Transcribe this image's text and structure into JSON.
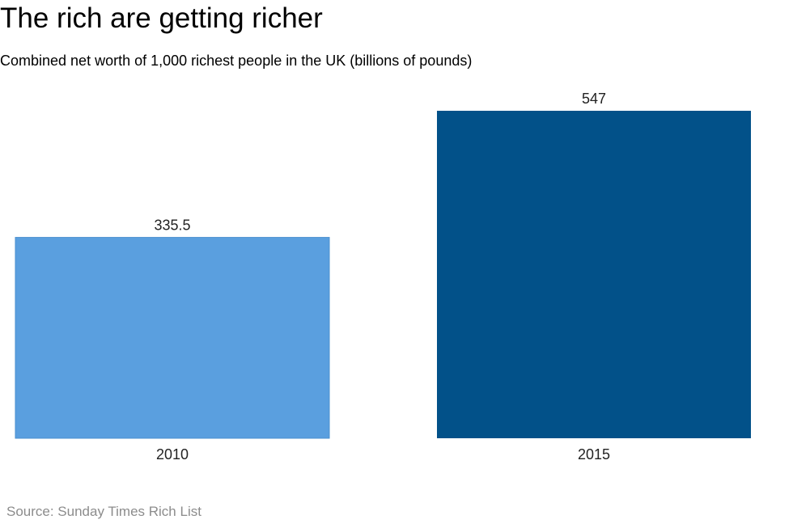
{
  "chart_data": {
    "type": "bar",
    "title": "The rich are getting richer",
    "subtitle": "Combined net worth of 1,000 richest people in the UK (billions of pounds)",
    "source": "Source: Sunday Times Rich List",
    "categories": [
      "2010",
      "2015"
    ],
    "values": [
      335.5,
      547
    ],
    "value_labels": [
      "335.5",
      "547"
    ],
    "colors": [
      "#5a9fdf",
      "#025189"
    ],
    "xlabel": "",
    "ylabel": "",
    "ylim": [
      0,
      547
    ],
    "grid": false,
    "legend": "none"
  }
}
